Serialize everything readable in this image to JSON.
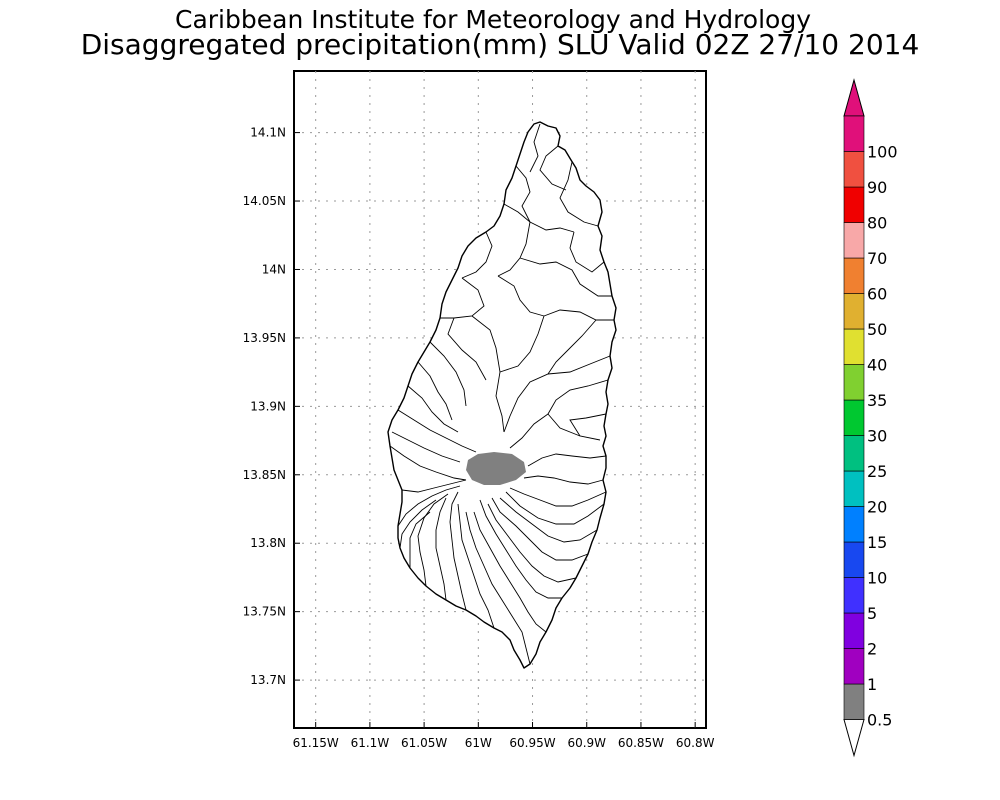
{
  "title": {
    "line1": "Caribbean Institute for Meteorology and Hydrology",
    "line2": "Disaggregated precipitation(mm) SLU Valid 02Z 27/10 2014"
  },
  "map": {
    "lon_range": [
      -61.17,
      -60.79
    ],
    "lat_range": [
      13.665,
      14.145
    ],
    "x_ticks": [
      {
        "value": -61.15,
        "label": "61.15W"
      },
      {
        "value": -61.1,
        "label": "61.1W"
      },
      {
        "value": -61.05,
        "label": "61.05W"
      },
      {
        "value": -61.0,
        "label": "61W"
      },
      {
        "value": -60.95,
        "label": "60.95W"
      },
      {
        "value": -60.9,
        "label": "60.9W"
      },
      {
        "value": -60.85,
        "label": "60.85W"
      },
      {
        "value": -60.8,
        "label": "60.8W"
      }
    ],
    "y_ticks": [
      {
        "value": 14.1,
        "label": "14.1N"
      },
      {
        "value": 14.05,
        "label": "14.05N"
      },
      {
        "value": 14.0,
        "label": "14N"
      },
      {
        "value": 13.95,
        "label": "13.95N"
      },
      {
        "value": 13.9,
        "label": "13.9N"
      },
      {
        "value": 13.85,
        "label": "13.85N"
      },
      {
        "value": 13.8,
        "label": "13.8N"
      },
      {
        "value": 13.75,
        "label": "13.75N"
      },
      {
        "value": 13.7,
        "label": "13.7N"
      }
    ],
    "precip_area": {
      "category": "0.5-1",
      "color": "#808080"
    }
  },
  "colorbar": {
    "labels": [
      "0.5",
      "1",
      "2",
      "5",
      "10",
      "15",
      "20",
      "25",
      "30",
      "35",
      "40",
      "50",
      "60",
      "70",
      "80",
      "90",
      "100"
    ],
    "colors": [
      "#808080",
      "#a000c0",
      "#8000e0",
      "#4030ff",
      "#1848f0",
      "#0080ff",
      "#00c0c0",
      "#00c080",
      "#00c830",
      "#80d030",
      "#e0e030",
      "#e0b030",
      "#f08030",
      "#f8a8a8",
      "#f00000",
      "#f05040",
      "#e0107a"
    ],
    "under_color": "#ffffff"
  }
}
